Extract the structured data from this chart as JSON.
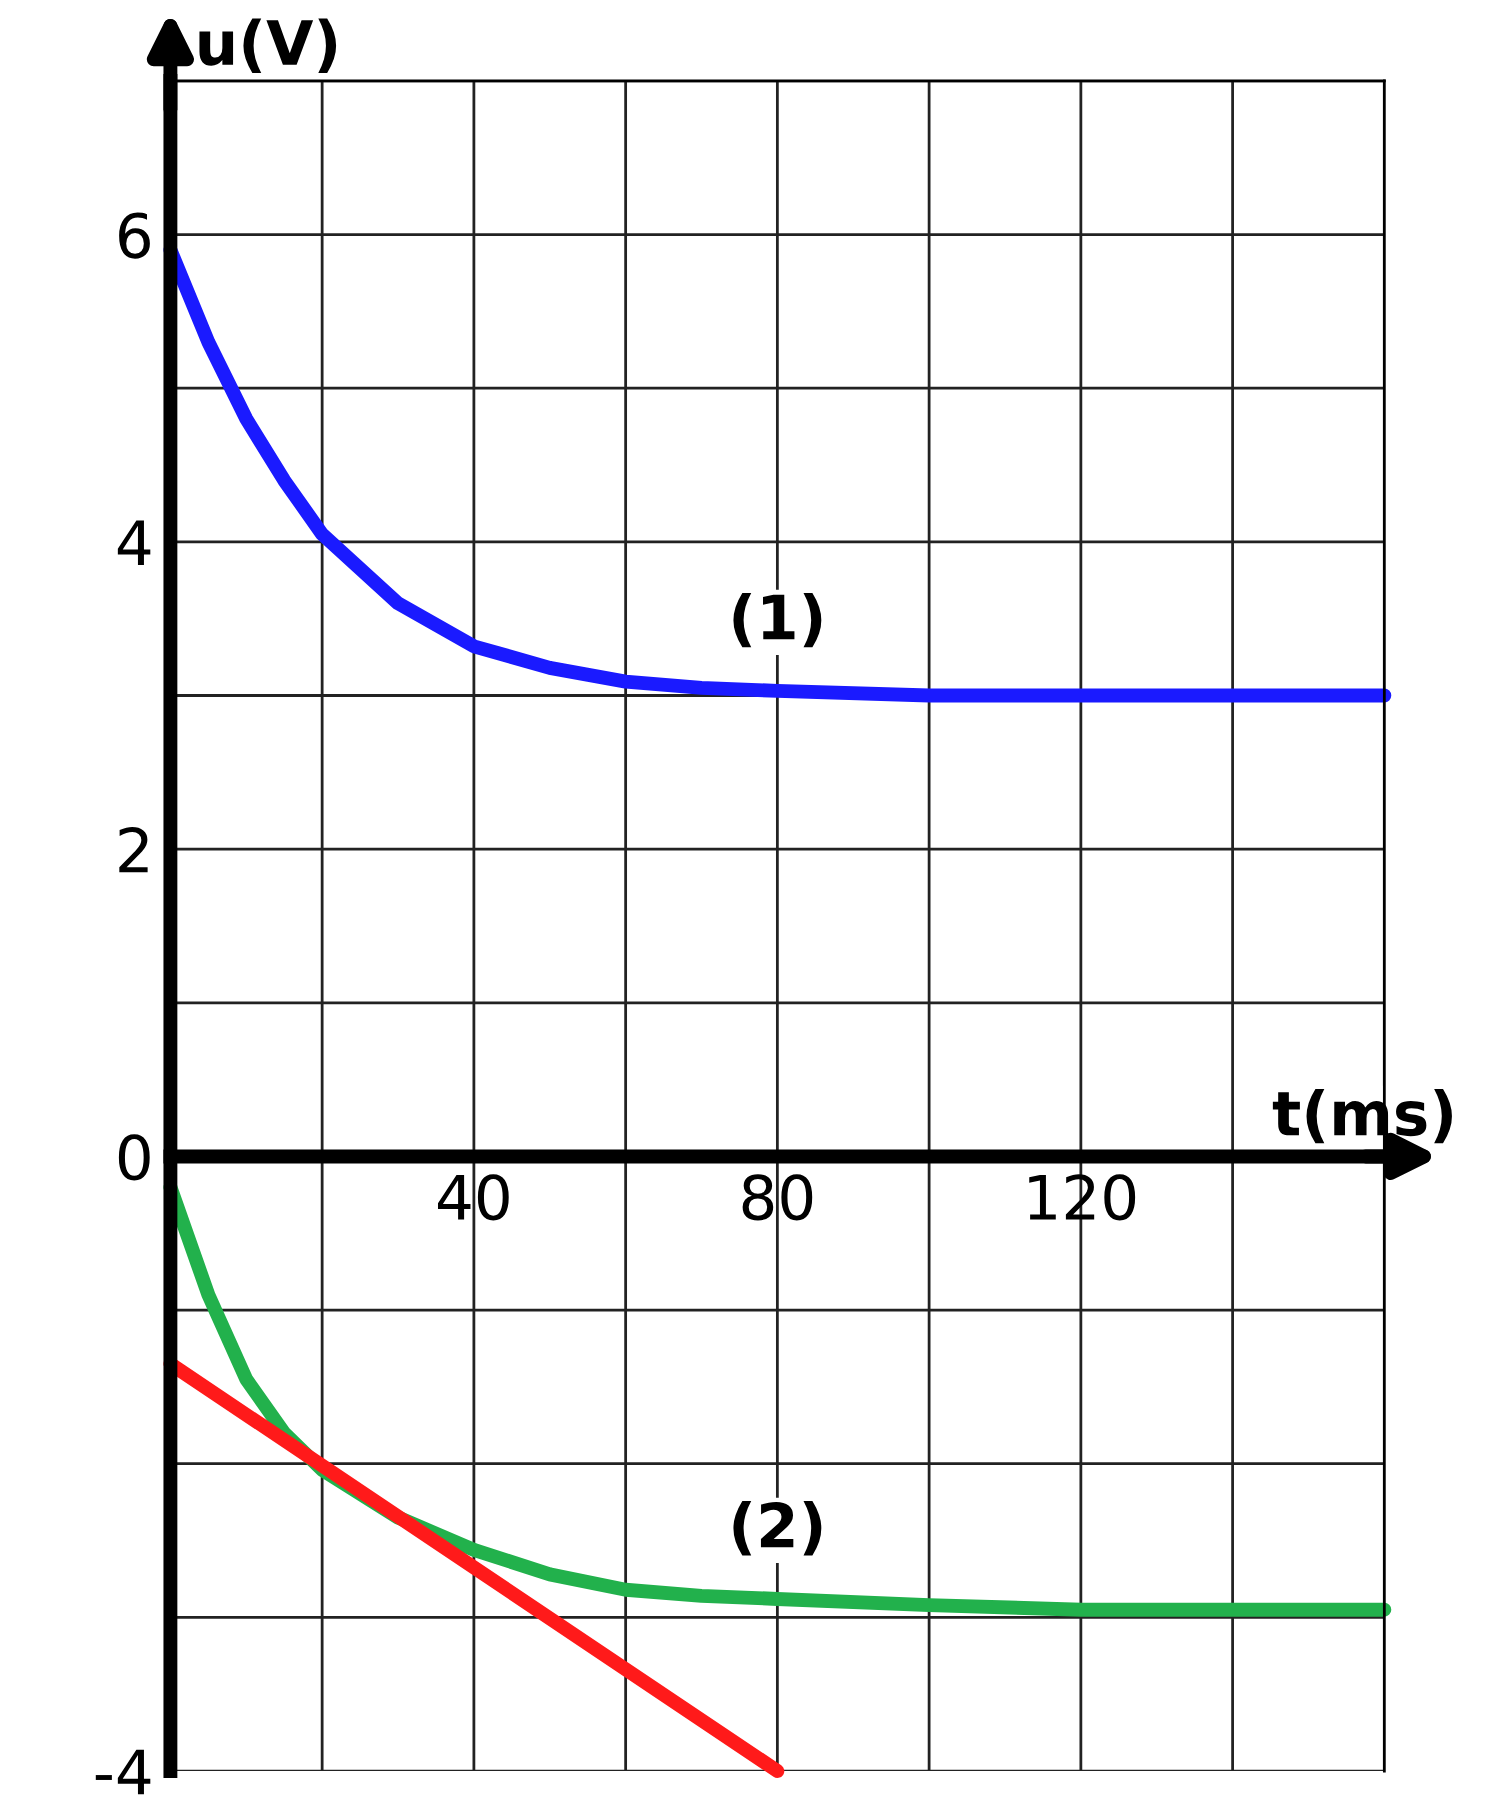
{
  "chart_data": {
    "type": "line",
    "xlabel": "t(ms)",
    "ylabel": "u(V)",
    "xlim": [
      0,
      160
    ],
    "ylim": [
      -4,
      7
    ],
    "xticks": [
      {
        "value": 0,
        "label": null
      },
      {
        "value": 20,
        "label": null
      },
      40,
      {
        "value": 60,
        "label": null
      },
      80,
      {
        "value": 100,
        "label": null
      },
      120,
      {
        "value": 140,
        "label": null
      },
      {
        "value": 160,
        "label": null
      }
    ],
    "yticks": [
      -4,
      {
        "value": -3,
        "label": null
      },
      {
        "value": -2,
        "label": null
      },
      {
        "value": -1,
        "label": null
      },
      0,
      {
        "value": 1,
        "label": null
      },
      2,
      {
        "value": 3,
        "label": null
      },
      4,
      {
        "value": 5,
        "label": null
      },
      6,
      {
        "value": 7,
        "label": null
      }
    ],
    "grid": true,
    "line_style": "solid",
    "marker": "none",
    "series": [
      {
        "name": "(1)",
        "color": "#1a1aff",
        "x": [
          0,
          5,
          10,
          15,
          20,
          30,
          40,
          50,
          60,
          70,
          80,
          100,
          120,
          140,
          160
        ],
        "values": [
          5.9,
          5.3,
          4.8,
          4.4,
          4.05,
          3.6,
          3.32,
          3.18,
          3.09,
          3.05,
          3.03,
          3.0,
          3.0,
          3.0,
          3.0
        ]
      },
      {
        "name": "(2)",
        "color": "#22b14c",
        "x": [
          0,
          5,
          10,
          15,
          20,
          30,
          40,
          50,
          60,
          70,
          80,
          100,
          120,
          140,
          160
        ],
        "values": [
          -0.2,
          -0.9,
          -1.45,
          -1.8,
          -2.04,
          -2.35,
          -2.56,
          -2.72,
          -2.82,
          -2.86,
          -2.88,
          -2.92,
          -2.95,
          -2.95,
          -2.95
        ]
      },
      {
        "color": "#ff1a1a",
        "x": [
          0,
          80
        ],
        "values": [
          -1.35,
          -4.0
        ]
      }
    ]
  }
}
